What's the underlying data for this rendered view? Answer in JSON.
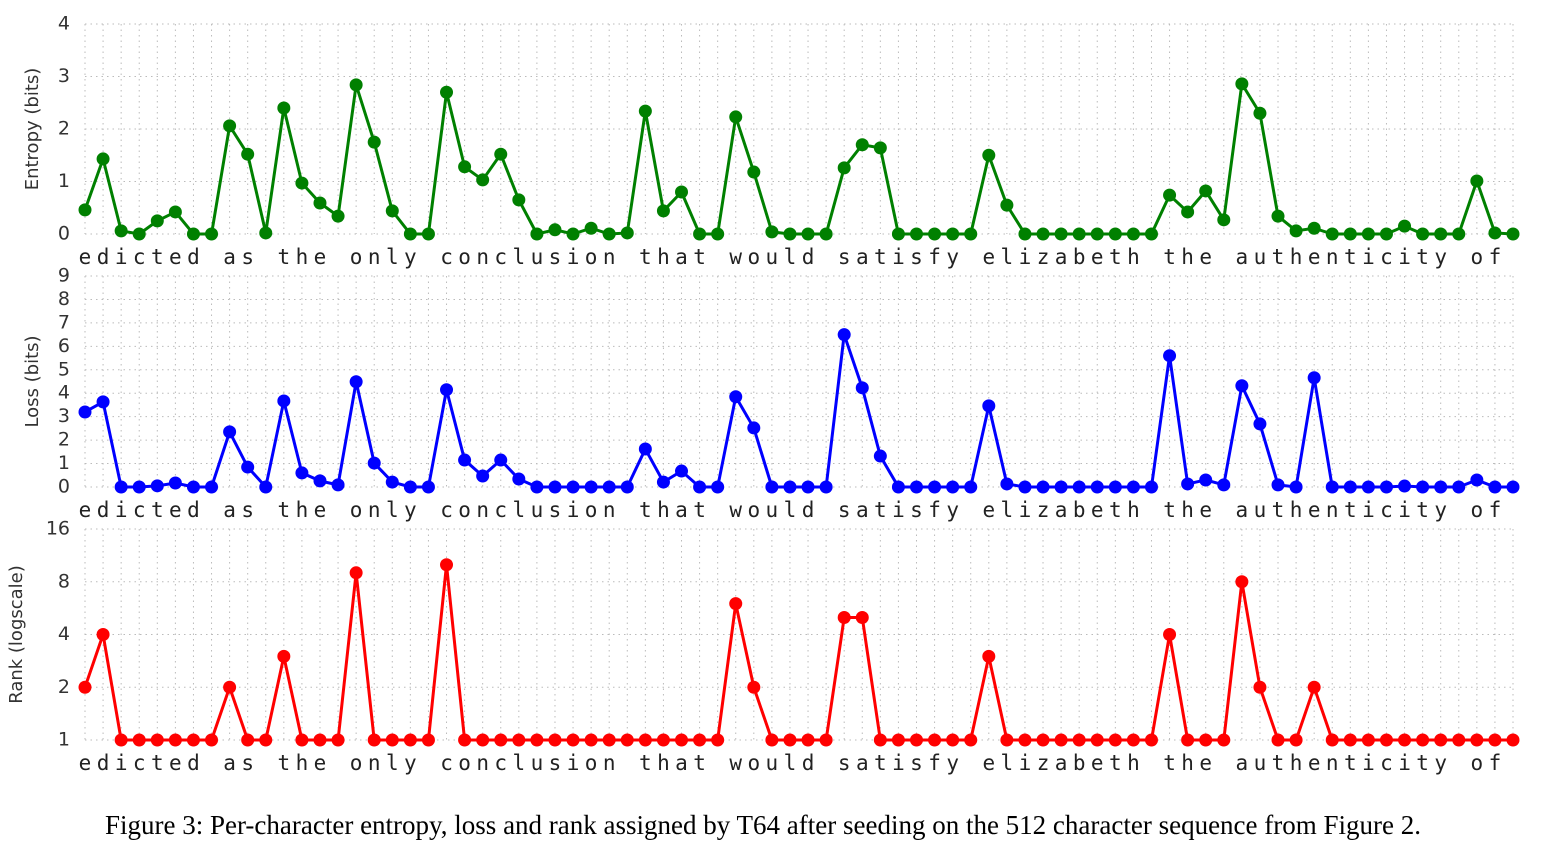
{
  "chart_data": [
    {
      "type": "line",
      "ylabel": "Entropy (bits)",
      "color": "#008000",
      "grid": true,
      "categories": [
        "e",
        "d",
        "i",
        "c",
        "t",
        "e",
        "d",
        null,
        "a",
        "s",
        null,
        "t",
        "h",
        "e",
        null,
        "o",
        "n",
        "l",
        "y",
        null,
        "c",
        "o",
        "n",
        "c",
        "l",
        "u",
        "s",
        "i",
        "o",
        "n",
        null,
        "t",
        "h",
        "a",
        "t",
        null,
        "w",
        "o",
        "u",
        "l",
        "d",
        null,
        "s",
        "a",
        "t",
        "i",
        "s",
        "f",
        "y",
        null,
        "e",
        "l",
        "i",
        "z",
        "a",
        "b",
        "e",
        "t",
        "h",
        null,
        "t",
        "h",
        "e",
        null,
        "a",
        "u",
        "t",
        "h",
        "e",
        "n",
        "t",
        "i",
        "c",
        "i",
        "t",
        "y",
        null,
        "o",
        "f",
        null
      ],
      "values": [
        0.46,
        1.43,
        0.06,
        0,
        0.25,
        0.42,
        0,
        0,
        2.06,
        1.52,
        0.02,
        2.4,
        0.97,
        0.59,
        0.34,
        2.84,
        1.75,
        0.44,
        0,
        0,
        2.7,
        1.28,
        1.03,
        1.52,
        0.65,
        0,
        0.08,
        0,
        0.11,
        0,
        0.02,
        2.34,
        0.44,
        0.8,
        0,
        0,
        2.23,
        1.18,
        0.04,
        0,
        0,
        0,
        1.26,
        1.7,
        1.64,
        0,
        0,
        0,
        0,
        0,
        1.5,
        0.55,
        0,
        0,
        0,
        0,
        0,
        0,
        0,
        0,
        0.74,
        0.42,
        0.82,
        0.27,
        2.86,
        2.3,
        0.34,
        0.06,
        0.11,
        0,
        0,
        0,
        0,
        0.15,
        0,
        0,
        0,
        1.01,
        0.02,
        0
      ],
      "ylim": [
        0,
        4
      ],
      "yticks": [
        0,
        1,
        2,
        3,
        4
      ]
    },
    {
      "type": "line",
      "ylabel": "Loss (bits)",
      "color": "#0000ff",
      "grid": true,
      "categories": [
        "e",
        "d",
        "i",
        "c",
        "t",
        "e",
        "d",
        null,
        "a",
        "s",
        null,
        "t",
        "h",
        "e",
        null,
        "o",
        "n",
        "l",
        "y",
        null,
        "c",
        "o",
        "n",
        "c",
        "l",
        "u",
        "s",
        "i",
        "o",
        "n",
        null,
        "t",
        "h",
        "a",
        "t",
        null,
        "w",
        "o",
        "u",
        "l",
        "d",
        null,
        "s",
        "a",
        "t",
        "i",
        "s",
        "f",
        "y",
        null,
        "e",
        "l",
        "i",
        "z",
        "a",
        "b",
        "e",
        "t",
        "h",
        null,
        "t",
        "h",
        "e",
        null,
        "a",
        "u",
        "t",
        "h",
        "e",
        "n",
        "t",
        "i",
        "c",
        "i",
        "t",
        "y",
        null,
        "o",
        "f",
        null
      ],
      "values": [
        3.2,
        3.63,
        0,
        0,
        0.05,
        0.17,
        0,
        0,
        2.35,
        0.85,
        0,
        3.67,
        0.6,
        0.26,
        0.09,
        4.49,
        1.02,
        0.21,
        0,
        0,
        4.15,
        1.15,
        0.47,
        1.15,
        0.34,
        0,
        0,
        0,
        0,
        0,
        0,
        1.62,
        0.21,
        0.68,
        0,
        0,
        3.85,
        2.52,
        0,
        0,
        0,
        0,
        6.5,
        4.23,
        1.32,
        0,
        0,
        0,
        0,
        0,
        3.46,
        0.13,
        0,
        0,
        0,
        0,
        0,
        0,
        0,
        0,
        5.6,
        0.13,
        0.3,
        0.09,
        4.32,
        2.69,
        0.09,
        0,
        4.66,
        0,
        0,
        0,
        0,
        0.04,
        0,
        0,
        0,
        0.3,
        0,
        0
      ],
      "ylim": [
        0,
        9
      ],
      "yticks": [
        0,
        1,
        2,
        3,
        4,
        5,
        6,
        7,
        8,
        9
      ]
    },
    {
      "type": "line",
      "ylabel": "Rank (logscale)",
      "color": "#ff0000",
      "grid": true,
      "log_y": true,
      "categories": [
        "e",
        "d",
        "i",
        "c",
        "t",
        "e",
        "d",
        null,
        "a",
        "s",
        null,
        "t",
        "h",
        "e",
        null,
        "o",
        "n",
        "l",
        "y",
        null,
        "c",
        "o",
        "n",
        "c",
        "l",
        "u",
        "s",
        "i",
        "o",
        "n",
        null,
        "t",
        "h",
        "a",
        "t",
        null,
        "w",
        "o",
        "u",
        "l",
        "d",
        null,
        "s",
        "a",
        "t",
        "i",
        "s",
        "f",
        "y",
        null,
        "e",
        "l",
        "i",
        "z",
        "a",
        "b",
        "e",
        "t",
        "h",
        null,
        "t",
        "h",
        "e",
        null,
        "a",
        "u",
        "t",
        "h",
        "e",
        "n",
        "t",
        "i",
        "c",
        "i",
        "t",
        "y",
        null,
        "o",
        "f",
        null
      ],
      "values": [
        2,
        4,
        1,
        1,
        1,
        1,
        1,
        1,
        2,
        1,
        1,
        3,
        1,
        1,
        1,
        9,
        1,
        1,
        1,
        1,
        10,
        1,
        1,
        1,
        1,
        1,
        1,
        1,
        1,
        1,
        1,
        1,
        1,
        1,
        1,
        1,
        6,
        2,
        1,
        1,
        1,
        1,
        5,
        5,
        1,
        1,
        1,
        1,
        1,
        1,
        3,
        1,
        1,
        1,
        1,
        1,
        1,
        1,
        1,
        1,
        4,
        1,
        1,
        1,
        8,
        2,
        1,
        1,
        2,
        1,
        1,
        1,
        1,
        1,
        1,
        1,
        1,
        1,
        1,
        1
      ],
      "ylim": [
        1,
        16
      ],
      "yticks": [
        1,
        2,
        4,
        8,
        16
      ]
    }
  ],
  "caption": "Figure 3: Per-character entropy, loss and rank assigned by T64 after seeding on the 512 character sequence from Figure 2."
}
